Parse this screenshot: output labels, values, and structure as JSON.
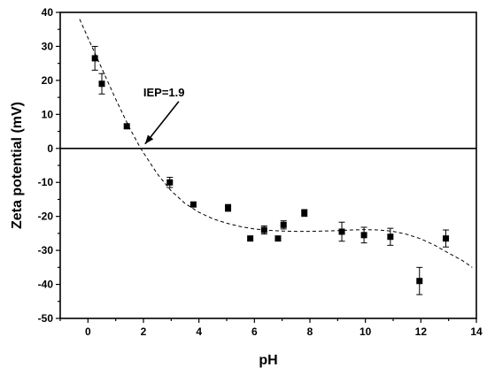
{
  "chart_data": {
    "type": "scatter",
    "xlabel": "pH",
    "ylabel": "Zeta potential (mV)",
    "xlim": [
      -1,
      14
    ],
    "ylim": [
      -50,
      40
    ],
    "xticks": [
      0,
      2,
      4,
      6,
      8,
      10,
      12,
      14
    ],
    "yticks": [
      40,
      30,
      20,
      10,
      0,
      -10,
      -20,
      -30,
      -40,
      -50
    ],
    "grid": false,
    "zero_line": true,
    "series": [
      {
        "points": [
          {
            "x": 0.25,
            "y": 26.5,
            "err": 3.5
          },
          {
            "x": 0.5,
            "y": 19.0,
            "err": 3.0
          },
          {
            "x": 1.4,
            "y": 6.5,
            "err": 0
          },
          {
            "x": 2.95,
            "y": -10.0,
            "err": 1.5
          },
          {
            "x": 3.8,
            "y": -16.5,
            "err": 0
          },
          {
            "x": 5.05,
            "y": -17.5,
            "err": 1.0
          },
          {
            "x": 5.85,
            "y": -26.5,
            "err": 0
          },
          {
            "x": 6.35,
            "y": -24.0,
            "err": 1.2
          },
          {
            "x": 6.85,
            "y": -26.5,
            "err": 0
          },
          {
            "x": 7.05,
            "y": -22.5,
            "err": 1.2
          },
          {
            "x": 7.8,
            "y": -19.0,
            "err": 1.0
          },
          {
            "x": 9.15,
            "y": -24.5,
            "err": 2.8
          },
          {
            "x": 9.95,
            "y": -25.5,
            "err": 2.3
          },
          {
            "x": 10.9,
            "y": -26.0,
            "err": 2.5
          },
          {
            "x": 11.95,
            "y": -39.0,
            "err": 4.0
          },
          {
            "x": 12.9,
            "y": -26.5,
            "err": 2.5
          }
        ]
      }
    ],
    "fit_curve": [
      [
        -0.3,
        38
      ],
      [
        0.0,
        32.5
      ],
      [
        0.5,
        23.5
      ],
      [
        1.0,
        14.5
      ],
      [
        1.5,
        6
      ],
      [
        1.9,
        0
      ],
      [
        2.5,
        -7.5
      ],
      [
        3.0,
        -12.5
      ],
      [
        3.5,
        -16.2
      ],
      [
        4.0,
        -18.8
      ],
      [
        4.5,
        -20.7
      ],
      [
        5.0,
        -22.0
      ],
      [
        5.5,
        -23.0
      ],
      [
        6.0,
        -23.7
      ],
      [
        6.5,
        -24.1
      ],
      [
        7.0,
        -24.3
      ],
      [
        7.5,
        -24.4
      ],
      [
        8.0,
        -24.4
      ],
      [
        8.5,
        -24.3
      ],
      [
        9.0,
        -24.2
      ],
      [
        9.5,
        -24.0
      ],
      [
        10.0,
        -23.9
      ],
      [
        10.5,
        -24.0
      ],
      [
        11.0,
        -24.4
      ],
      [
        11.5,
        -25.3
      ],
      [
        12.0,
        -26.6
      ],
      [
        12.5,
        -28.5
      ],
      [
        13.0,
        -30.8
      ],
      [
        13.5,
        -33.0
      ],
      [
        13.85,
        -35
      ]
    ],
    "annotation": {
      "text": "IEP=1.9",
      "x": 1.9,
      "y": 0
    }
  }
}
